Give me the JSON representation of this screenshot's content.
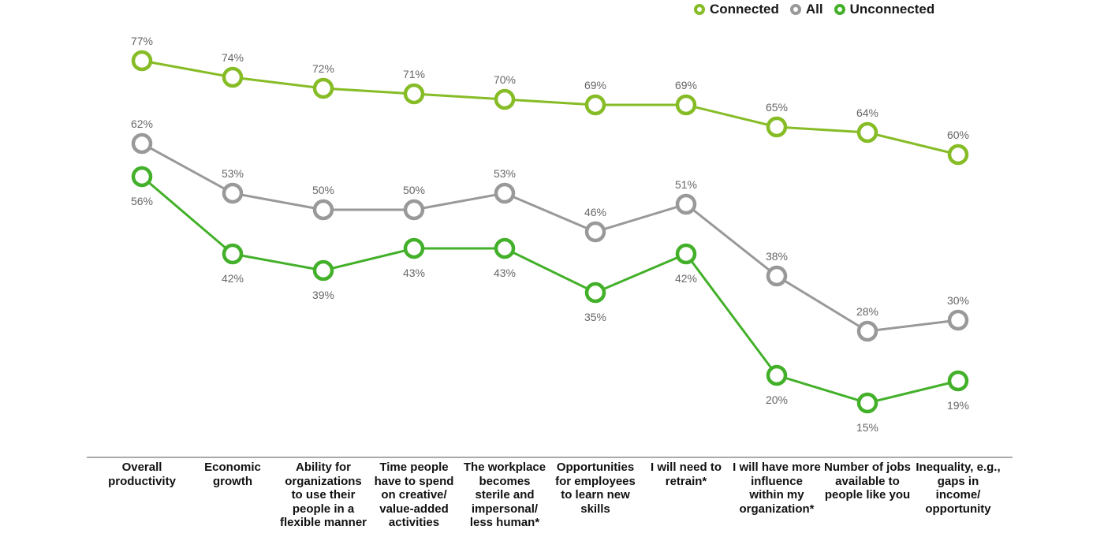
{
  "chart_data": {
    "type": "line",
    "categories": [
      "Overall productivity",
      "Economic growth",
      "Ability for organizations to use their people in a flexible manner",
      "Time people have to spend on creative/ value-added activities",
      "The workplace becomes sterile and impersonal/ less human*",
      "Opportunities for employees to learn new skills",
      "I will need to retrain*",
      "I will have more influence within my organization*",
      "Number of jobs available to people like you",
      "Inequality, e.g., gaps in income/ opportunity"
    ],
    "series": [
      {
        "name": "Connected",
        "color": "#86bc25",
        "values": [
          77,
          74,
          72,
          71,
          70,
          69,
          69,
          65,
          64,
          60
        ],
        "labels": [
          "77%",
          "74%",
          "72%",
          "71%",
          "70%",
          "69%",
          "69%",
          "65%",
          "64%",
          "60%"
        ]
      },
      {
        "name": "All",
        "color": "#999999",
        "values": [
          62,
          53,
          50,
          50,
          53,
          46,
          51,
          38,
          28,
          30
        ],
        "labels": [
          "62%",
          "53%",
          "50%",
          "50%",
          "53%",
          "46%",
          "51%",
          "38%",
          "28%",
          "30%"
        ]
      },
      {
        "name": "Unconnected",
        "color": "#43b02a",
        "values": [
          56,
          42,
          39,
          43,
          43,
          35,
          42,
          20,
          15,
          19
        ],
        "labels": [
          "56%",
          "42%",
          "39%",
          "43%",
          "43%",
          "35%",
          "42%",
          "20%",
          "15%",
          "19%"
        ]
      }
    ],
    "legend_position": "top-right",
    "grid": false,
    "ylim": [
      15,
      77
    ]
  }
}
